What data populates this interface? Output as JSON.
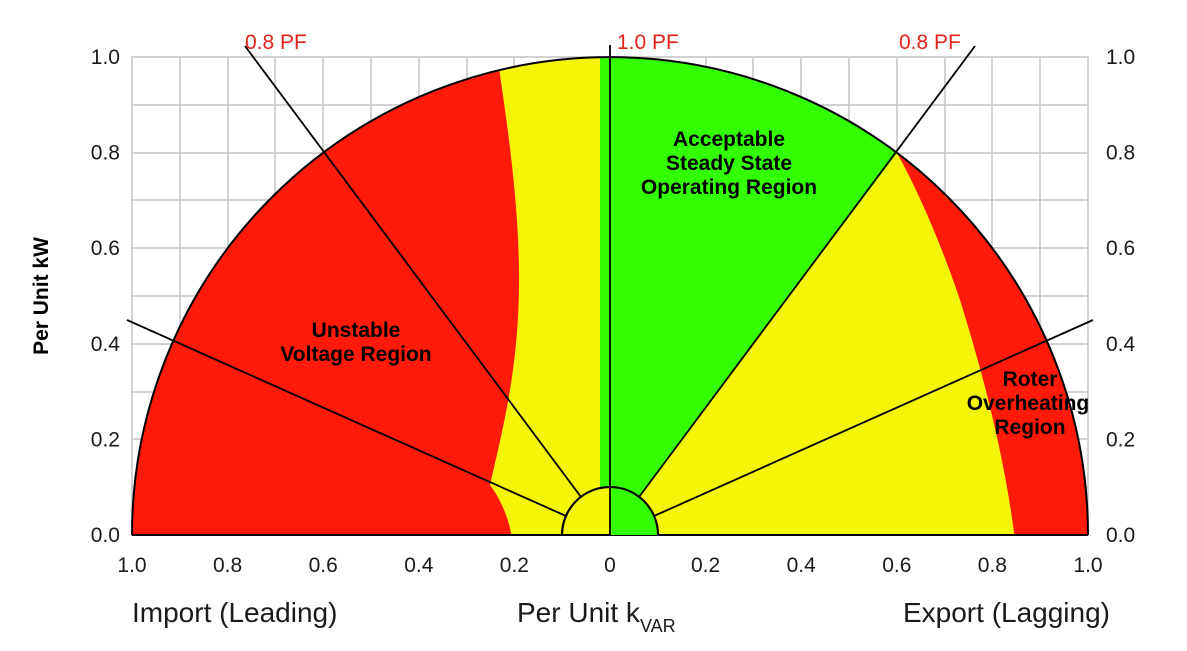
{
  "chart_data": {
    "type": "capability-curve",
    "y_axis": {
      "label": "Per Unit kW",
      "ticks": [
        "0.0",
        "0.2",
        "0.4",
        "0.6",
        "0.8",
        "1.0"
      ],
      "range": [
        0,
        1
      ]
    },
    "x_axis": {
      "ticks": [
        "1.0",
        "0.8",
        "0.6",
        "0.4",
        "0.2",
        "0",
        "0.2",
        "0.4",
        "0.6",
        "0.8",
        "1.0"
      ],
      "range": [
        -1,
        1
      ],
      "left_label": "Import (Leading)",
      "center_label_main": "Per Unit k",
      "center_label_sub": "VAR",
      "right_label": "Export (Lagging)"
    },
    "power_factor_labels": {
      "left": "0.8 PF",
      "center": "1.0 PF",
      "right": "0.8 PF"
    },
    "regions": {
      "acceptable": {
        "lines": [
          "Acceptable",
          "Steady State",
          "Operating Region"
        ],
        "color": "#33ff00"
      },
      "unstable": {
        "lines": [
          "Unstable",
          "Voltage Region"
        ],
        "color": "#ff1a0a"
      },
      "rotor": {
        "lines": [
          "Roter",
          "Overheating",
          "Region"
        ],
        "color": "#ff1a0a"
      },
      "caution": {
        "color": "#f5f50a"
      }
    },
    "grid": true
  }
}
